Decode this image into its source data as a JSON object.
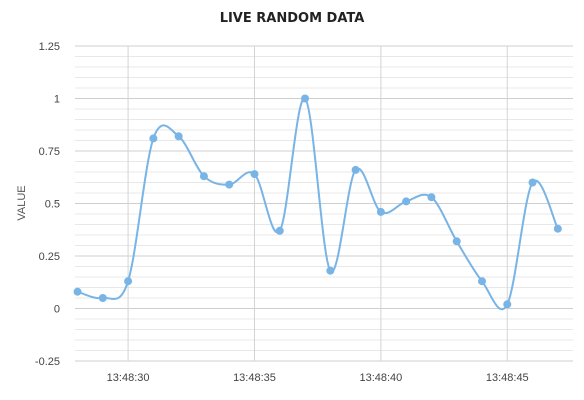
{
  "chart_data": {
    "type": "line",
    "title": "LIVE RANDOM DATA",
    "xlabel": "",
    "ylabel": "VALUE",
    "ylim": [
      -0.25,
      1.25
    ],
    "xlim": [
      "13:48:27.9",
      "13:48:47.6"
    ],
    "grid": true,
    "legend": "none",
    "smooth": true,
    "line_color": "#78b4e6",
    "marker_color": "#78b4e6",
    "y_ticks": [
      "1.25",
      "1",
      "0.75",
      "0.5",
      "0.25",
      "0",
      "-0.25"
    ],
    "y_tick_values": [
      1.25,
      1,
      0.75,
      0.5,
      0.25,
      0,
      -0.25
    ],
    "x_ticks": [
      "13:48:30",
      "13:48:35",
      "13:48:40",
      "13:48:45"
    ],
    "series": [
      {
        "x": [
          "13:48:28",
          "13:48:29",
          "13:48:30",
          "13:48:31",
          "13:48:32",
          "13:48:33",
          "13:48:34",
          "13:48:35",
          "13:48:36",
          "13:48:37",
          "13:48:38",
          "13:48:39",
          "13:48:40",
          "13:48:41",
          "13:48:42",
          "13:48:43",
          "13:48:44",
          "13:48:45",
          "13:48:46",
          "13:48:47"
        ],
        "values": [
          0.08,
          0.05,
          0.13,
          0.81,
          0.82,
          0.63,
          0.59,
          0.64,
          0.37,
          1.0,
          0.18,
          0.66,
          0.46,
          0.51,
          0.53,
          0.32,
          0.13,
          0.02,
          0.6,
          0.38
        ]
      }
    ]
  }
}
